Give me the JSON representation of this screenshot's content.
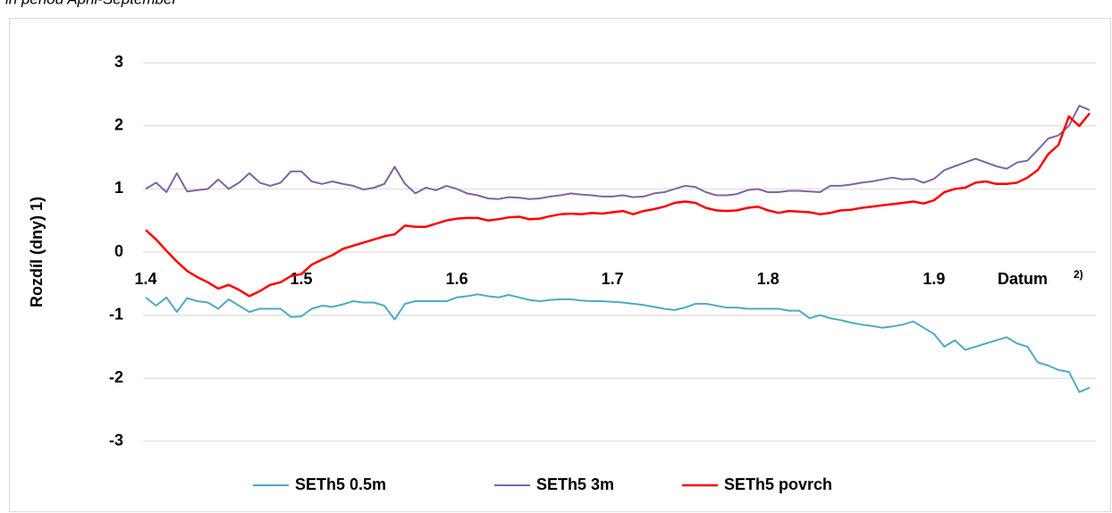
{
  "chart_data": {
    "type": "line",
    "subtitle": "in period April-September",
    "ylabel": "Rozdíl (dny) 1)",
    "xlabel": "Datum",
    "xlabel_sup": "2)",
    "categories": [
      "1.4",
      null,
      null,
      null,
      null,
      null,
      null,
      null,
      null,
      null,
      null,
      null,
      null,
      null,
      null,
      "1.5",
      null,
      null,
      null,
      null,
      null,
      null,
      null,
      null,
      null,
      null,
      null,
      null,
      null,
      null,
      "1.6",
      null,
      null,
      null,
      null,
      null,
      null,
      null,
      null,
      null,
      null,
      null,
      null,
      null,
      null,
      "1.7",
      null,
      null,
      null,
      null,
      null,
      null,
      null,
      null,
      null,
      null,
      null,
      null,
      null,
      null,
      "1.8",
      null,
      null,
      null,
      null,
      null,
      null,
      null,
      null,
      null,
      null,
      null,
      null,
      null,
      null,
      null,
      "1.9",
      null,
      null,
      null,
      null,
      null,
      null,
      null,
      null,
      null,
      null,
      null,
      null,
      null,
      null,
      null
    ],
    "series": [
      {
        "name": "SETh5 0.5m",
        "color": "#4bacc6",
        "values": [
          -0.72,
          -0.85,
          -0.72,
          -0.95,
          -0.73,
          -0.78,
          -0.8,
          -0.9,
          -0.75,
          -0.85,
          -0.95,
          -0.9,
          -0.9,
          -0.9,
          -1.03,
          -1.02,
          -0.9,
          -0.85,
          -0.87,
          -0.83,
          -0.78,
          -0.8,
          -0.8,
          -0.85,
          -1.07,
          -0.82,
          -0.78,
          -0.78,
          -0.78,
          -0.78,
          -0.72,
          -0.7,
          -0.67,
          -0.7,
          -0.72,
          -0.68,
          -0.72,
          -0.76,
          -0.78,
          -0.76,
          -0.75,
          -0.75,
          -0.77,
          -0.78,
          -0.78,
          -0.79,
          -0.8,
          -0.82,
          -0.84,
          -0.87,
          -0.9,
          -0.92,
          -0.88,
          -0.82,
          -0.82,
          -0.85,
          -0.88,
          -0.88,
          -0.9,
          -0.9,
          -0.9,
          -0.9,
          -0.93,
          -0.93,
          -1.05,
          -1.0,
          -1.05,
          -1.08,
          -1.12,
          -1.15,
          -1.17,
          -1.2,
          -1.18,
          -1.15,
          -1.1,
          -1.2,
          -1.3,
          -1.5,
          -1.4,
          -1.55,
          -1.5,
          -1.45,
          -1.4,
          -1.35,
          -1.45,
          -1.5,
          -1.75,
          -1.8,
          -1.87,
          -1.9,
          -2.22,
          -2.15
        ]
      },
      {
        "name": "SETh5 3m",
        "color": "#8064a2",
        "values": [
          1.0,
          1.1,
          0.95,
          1.25,
          0.96,
          0.98,
          1.0,
          1.15,
          1.0,
          1.1,
          1.25,
          1.1,
          1.05,
          1.1,
          1.28,
          1.28,
          1.12,
          1.08,
          1.12,
          1.08,
          1.05,
          0.99,
          1.02,
          1.08,
          1.35,
          1.08,
          0.93,
          1.02,
          0.98,
          1.05,
          1.0,
          0.93,
          0.9,
          0.85,
          0.84,
          0.87,
          0.86,
          0.84,
          0.85,
          0.88,
          0.9,
          0.93,
          0.91,
          0.9,
          0.88,
          0.88,
          0.9,
          0.87,
          0.88,
          0.93,
          0.95,
          1.0,
          1.05,
          1.03,
          0.95,
          0.9,
          0.9,
          0.92,
          0.98,
          1.0,
          0.95,
          0.95,
          0.97,
          0.97,
          0.96,
          0.95,
          1.05,
          1.05,
          1.07,
          1.1,
          1.12,
          1.15,
          1.18,
          1.15,
          1.16,
          1.1,
          1.16,
          1.3,
          1.36,
          1.42,
          1.48,
          1.42,
          1.36,
          1.32,
          1.42,
          1.45,
          1.62,
          1.8,
          1.85,
          2.0,
          2.32,
          2.25
        ]
      },
      {
        "name": "SETh5 povrch",
        "color": "#ff0000",
        "values": [
          0.35,
          0.2,
          0.02,
          -0.15,
          -0.3,
          -0.4,
          -0.48,
          -0.58,
          -0.52,
          -0.6,
          -0.7,
          -0.62,
          -0.52,
          -0.48,
          -0.38,
          -0.35,
          -0.2,
          -0.12,
          -0.05,
          0.05,
          0.1,
          0.15,
          0.2,
          0.25,
          0.28,
          0.42,
          0.4,
          0.4,
          0.45,
          0.5,
          0.53,
          0.54,
          0.54,
          0.5,
          0.52,
          0.55,
          0.56,
          0.52,
          0.53,
          0.57,
          0.6,
          0.61,
          0.6,
          0.62,
          0.61,
          0.63,
          0.65,
          0.6,
          0.65,
          0.68,
          0.72,
          0.78,
          0.8,
          0.78,
          0.7,
          0.66,
          0.65,
          0.66,
          0.7,
          0.72,
          0.66,
          0.62,
          0.65,
          0.64,
          0.63,
          0.6,
          0.62,
          0.66,
          0.67,
          0.7,
          0.72,
          0.74,
          0.76,
          0.78,
          0.8,
          0.77,
          0.82,
          0.95,
          1.0,
          1.02,
          1.1,
          1.12,
          1.08,
          1.08,
          1.1,
          1.18,
          1.3,
          1.55,
          1.7,
          2.15,
          2.0,
          2.2
        ]
      }
    ],
    "ylim": [
      -3.5,
      3.5
    ],
    "yticks": [
      -3,
      -2,
      -1,
      0,
      1,
      2,
      3
    ],
    "grid": true,
    "legend": "bottom"
  }
}
